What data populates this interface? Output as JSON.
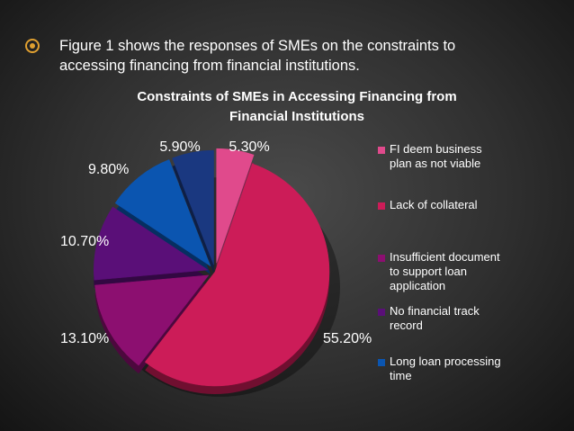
{
  "slide": {
    "bullet_text_line1": "Figure 1 shows the responses of SMEs on the constraints to",
    "bullet_text_line2": "accessing financing from financial institutions.",
    "bullet_icon": "circle-target-icon",
    "accent_color": "#e0a030"
  },
  "chart_data": {
    "type": "pie",
    "title_line1": "Constraints of SMEs in Accessing Financing from",
    "title_line2": "Financial Institutions",
    "slices": [
      {
        "label": "FI deem business plan as not viable",
        "value": 5.3,
        "display": "5.30%",
        "color": "#e04a8c"
      },
      {
        "label": "Lack of collateral",
        "value": 55.2,
        "display": "55.20%",
        "color": "#cc1c58"
      },
      {
        "label": "Insufficient document to support loan application",
        "value": 13.1,
        "display": "13.10%",
        "color": "#8c0f70"
      },
      {
        "label": "No financial track record",
        "value": 10.7,
        "display": "10.70%",
        "color": "#5a0f78"
      },
      {
        "label": "Long loan processing time",
        "value": 9.8,
        "display": "9.80%",
        "color": "#0b55b0"
      },
      {
        "label": "",
        "value": 5.9,
        "display": "5.90%",
        "color": "#1a3880"
      }
    ],
    "legend": {
      "position": "right",
      "entries": [
        {
          "lines": [
            "FI deem business",
            "plan as not viable"
          ],
          "color": "#e04a8c"
        },
        {
          "lines": [
            "Lack of collateral"
          ],
          "color": "#cc1c58"
        },
        {
          "lines": [
            "Insufficient document",
            "to support loan",
            "application"
          ],
          "color": "#8c0f70"
        },
        {
          "lines": [
            "No financial track",
            "record"
          ],
          "color": "#5a0f78"
        },
        {
          "lines": [
            "Long loan processing",
            "time"
          ],
          "color": "#0b55b0"
        }
      ]
    }
  }
}
